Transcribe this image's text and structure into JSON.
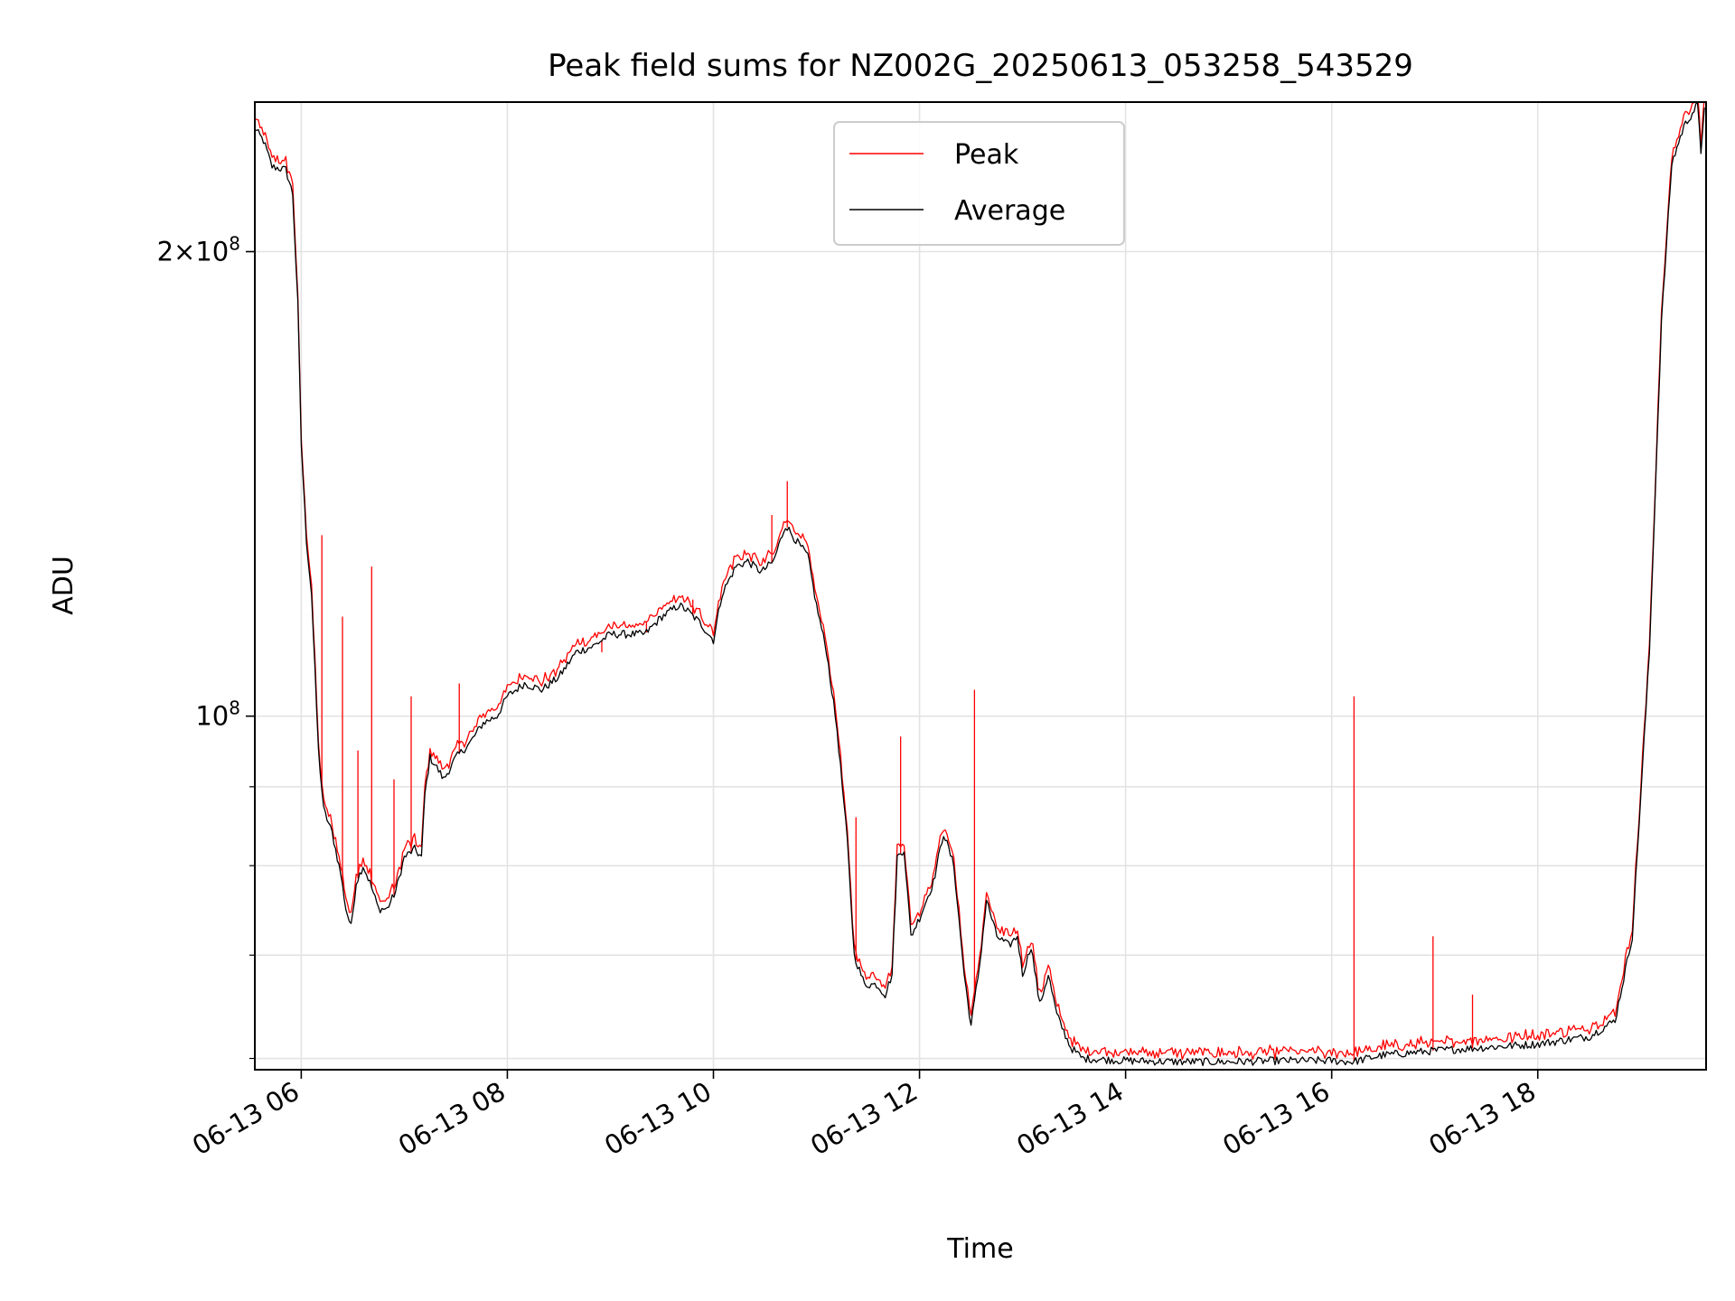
{
  "chart_data": {
    "type": "line",
    "title": "Peak field sums for NZ002G_20250613_053258_543529",
    "xlabel": "Time",
    "ylabel": "ADU",
    "y_scale": "log",
    "ylim": [
      59000000,
      250000000
    ],
    "x_range": [
      "2025-06-13 05:32:58",
      "2025-06-13 19:38:00"
    ],
    "x_ticks": [
      {
        "t": "2025-06-13 06:00",
        "label": "06-13 06"
      },
      {
        "t": "2025-06-13 08:00",
        "label": "06-13 08"
      },
      {
        "t": "2025-06-13 10:00",
        "label": "06-13 10"
      },
      {
        "t": "2025-06-13 12:00",
        "label": "06-13 12"
      },
      {
        "t": "2025-06-13 14:00",
        "label": "06-13 14"
      },
      {
        "t": "2025-06-13 16:00",
        "label": "06-13 16"
      },
      {
        "t": "2025-06-13 18:00",
        "label": "06-13 18"
      }
    ],
    "y_major_ticks": [
      {
        "value": 100000000,
        "base": "10",
        "exp": "8",
        "coef": ""
      },
      {
        "value": 200000000,
        "base": "10",
        "exp": "8",
        "coef": "2"
      }
    ],
    "y_minor_ticks": [
      60000000,
      70000000,
      80000000,
      90000000
    ],
    "grid": true,
    "legend_position": "top-center",
    "series": [
      {
        "name": "Peak",
        "color": "#ff0000",
        "spikes": [
          {
            "t": "2025-06-13 06:12",
            "y": 131000000
          },
          {
            "t": "2025-06-13 06:24",
            "y": 116000000
          },
          {
            "t": "2025-06-13 06:33",
            "y": 95000000
          },
          {
            "t": "2025-06-13 06:41",
            "y": 125000000
          },
          {
            "t": "2025-06-13 06:54",
            "y": 91000000
          },
          {
            "t": "2025-06-13 07:04",
            "y": 103000000
          },
          {
            "t": "2025-06-13 07:32",
            "y": 105000000
          },
          {
            "t": "2025-06-13 08:55",
            "y": 110000000
          },
          {
            "t": "2025-06-13 09:21",
            "y": 115000000
          },
          {
            "t": "2025-06-13 09:48",
            "y": 119000000
          },
          {
            "t": "2025-06-13 10:34",
            "y": 135000000
          },
          {
            "t": "2025-06-13 10:43",
            "y": 142000000
          },
          {
            "t": "2025-06-13 11:23",
            "y": 86000000
          },
          {
            "t": "2025-06-13 11:49",
            "y": 97000000
          },
          {
            "t": "2025-06-13 12:32",
            "y": 104000000
          },
          {
            "t": "2025-06-13 16:13",
            "y": 103000000
          },
          {
            "t": "2025-06-13 16:59",
            "y": 72000000
          },
          {
            "t": "2025-06-13 17:22",
            "y": 66000000
          }
        ]
      },
      {
        "name": "Average",
        "color": "#000000",
        "points": [
          [
            "2025-06-13 05:32",
            241000000
          ],
          [
            "2025-06-13 05:38",
            236000000
          ],
          [
            "2025-06-13 05:43",
            227000000
          ],
          [
            "2025-06-13 05:51",
            226000000
          ],
          [
            "2025-06-13 05:55",
            218000000
          ],
          [
            "2025-06-13 05:58",
            185000000
          ],
          [
            "2025-06-13 06:00",
            150000000
          ],
          [
            "2025-06-13 06:03",
            130000000
          ],
          [
            "2025-06-13 06:06",
            120000000
          ],
          [
            "2025-06-13 06:10",
            95000000
          ],
          [
            "2025-06-13 06:13",
            87000000
          ],
          [
            "2025-06-13 06:18",
            84000000
          ],
          [
            "2025-06-13 06:23",
            79000000
          ],
          [
            "2025-06-13 06:26",
            75000000
          ],
          [
            "2025-06-13 06:29",
            73000000
          ],
          [
            "2025-06-13 06:32",
            78000000
          ],
          [
            "2025-06-13 06:36",
            80000000
          ],
          [
            "2025-06-13 06:40",
            78000000
          ],
          [
            "2025-06-13 06:45",
            75000000
          ],
          [
            "2025-06-13 06:50",
            75000000
          ],
          [
            "2025-06-13 06:55",
            77000000
          ],
          [
            "2025-06-13 07:00",
            81000000
          ],
          [
            "2025-06-13 07:06",
            82000000
          ],
          [
            "2025-06-13 07:10",
            81000000
          ],
          [
            "2025-06-13 07:12",
            89000000
          ],
          [
            "2025-06-13 07:15",
            94000000
          ],
          [
            "2025-06-13 07:18",
            93000000
          ],
          [
            "2025-06-13 07:23",
            91000000
          ],
          [
            "2025-06-13 07:30",
            94000000
          ],
          [
            "2025-06-13 07:38",
            96000000
          ],
          [
            "2025-06-13 07:46",
            99000000
          ],
          [
            "2025-06-13 07:54",
            100000000
          ],
          [
            "2025-06-13 08:00",
            103000000
          ],
          [
            "2025-06-13 08:10",
            105000000
          ],
          [
            "2025-06-13 08:20",
            104000000
          ],
          [
            "2025-06-13 08:30",
            106000000
          ],
          [
            "2025-06-13 08:40",
            110000000
          ],
          [
            "2025-06-13 08:50",
            111000000
          ],
          [
            "2025-06-13 09:00",
            113000000
          ],
          [
            "2025-06-13 09:10",
            113000000
          ],
          [
            "2025-06-13 09:20",
            113000000
          ],
          [
            "2025-06-13 09:30",
            116000000
          ],
          [
            "2025-06-13 09:40",
            118000000
          ],
          [
            "2025-06-13 09:45",
            117000000
          ],
          [
            "2025-06-13 09:52",
            115000000
          ],
          [
            "2025-06-13 10:00",
            112000000
          ],
          [
            "2025-06-13 10:05",
            120000000
          ],
          [
            "2025-06-13 10:13",
            125000000
          ],
          [
            "2025-06-13 10:20",
            126000000
          ],
          [
            "2025-06-13 10:28",
            124000000
          ],
          [
            "2025-06-13 10:35",
            126000000
          ],
          [
            "2025-06-13 10:42",
            133000000
          ],
          [
            "2025-06-13 10:48",
            130000000
          ],
          [
            "2025-06-13 10:55",
            127000000
          ],
          [
            "2025-06-13 11:00",
            118000000
          ],
          [
            "2025-06-13 11:06",
            110000000
          ],
          [
            "2025-06-13 11:12",
            98000000
          ],
          [
            "2025-06-13 11:18",
            83000000
          ],
          [
            "2025-06-13 11:22",
            70000000
          ],
          [
            "2025-06-13 11:28",
            67000000
          ],
          [
            "2025-06-13 11:35",
            67000000
          ],
          [
            "2025-06-13 11:40",
            66000000
          ],
          [
            "2025-06-13 11:44",
            68000000
          ],
          [
            "2025-06-13 11:47",
            81000000
          ],
          [
            "2025-06-13 11:51",
            82000000
          ],
          [
            "2025-06-13 11:55",
            72000000
          ],
          [
            "2025-06-13 12:00",
            74000000
          ],
          [
            "2025-06-13 12:08",
            78000000
          ],
          [
            "2025-06-13 12:14",
            84000000
          ],
          [
            "2025-06-13 12:20",
            80000000
          ],
          [
            "2025-06-13 12:26",
            68000000
          ],
          [
            "2025-06-13 12:30",
            63000000
          ],
          [
            "2025-06-13 12:35",
            69000000
          ],
          [
            "2025-06-13 12:39",
            76000000
          ],
          [
            "2025-06-13 12:45",
            72000000
          ],
          [
            "2025-06-13 12:52",
            71000000
          ],
          [
            "2025-06-13 12:57",
            72000000
          ],
          [
            "2025-06-13 13:00",
            68000000
          ],
          [
            "2025-06-13 13:05",
            71000000
          ],
          [
            "2025-06-13 13:10",
            65000000
          ],
          [
            "2025-06-13 13:15",
            68000000
          ],
          [
            "2025-06-13 13:20",
            64000000
          ],
          [
            "2025-06-13 13:28",
            61000000
          ],
          [
            "2025-06-13 13:35",
            60000000
          ],
          [
            "2025-06-13 14:00",
            59800000
          ],
          [
            "2025-06-13 14:30",
            59700000
          ],
          [
            "2025-06-13 15:00",
            59700000
          ],
          [
            "2025-06-13 15:30",
            59800000
          ],
          [
            "2025-06-13 16:00",
            59800000
          ],
          [
            "2025-06-13 16:12",
            59700000
          ],
          [
            "2025-06-13 16:30",
            60300000
          ],
          [
            "2025-06-13 17:00",
            60700000
          ],
          [
            "2025-06-13 17:30",
            61000000
          ],
          [
            "2025-06-13 18:00",
            61300000
          ],
          [
            "2025-06-13 18:30",
            62000000
          ],
          [
            "2025-06-13 18:45",
            63500000
          ],
          [
            "2025-06-13 18:55",
            72000000
          ],
          [
            "2025-06-13 19:05",
            110000000
          ],
          [
            "2025-06-13 19:12",
            180000000
          ],
          [
            "2025-06-13 19:18",
            228000000
          ],
          [
            "2025-06-13 19:25",
            241000000
          ],
          [
            "2025-06-13 19:33",
            249000000
          ],
          [
            "2025-06-13 19:35",
            232000000
          ],
          [
            "2025-06-13 19:37",
            249000000
          ]
        ]
      }
    ]
  }
}
